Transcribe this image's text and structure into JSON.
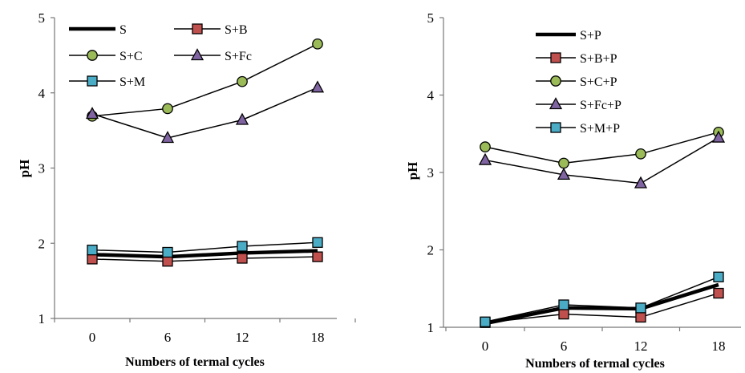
{
  "chart_data": [
    {
      "type": "line",
      "xlabel": "Numbers of termal cycles",
      "ylabel": "pH",
      "categories": [
        "0",
        "6",
        "12",
        "18"
      ],
      "ylim": [
        1,
        5
      ],
      "yticks": [
        "1",
        "2",
        "3",
        "4",
        "5"
      ],
      "grid": false,
      "legend_position": "top",
      "series": [
        {
          "name": "S",
          "values": [
            1.85,
            1.82,
            1.87,
            1.9
          ],
          "marker": "none",
          "color": "#000000"
        },
        {
          "name": "S+B",
          "values": [
            1.79,
            1.76,
            1.8,
            1.82
          ],
          "marker": "square",
          "color": "#c0504d"
        },
        {
          "name": "S+C",
          "values": [
            3.69,
            3.79,
            4.15,
            4.65
          ],
          "marker": "circle",
          "color": "#9bbb59"
        },
        {
          "name": "S+Fc",
          "values": [
            3.72,
            3.4,
            3.64,
            4.07
          ],
          "marker": "triangle",
          "color": "#8064a2"
        },
        {
          "name": "S+M",
          "values": [
            1.91,
            1.88,
            1.96,
            2.01
          ],
          "marker": "square",
          "color": "#4bacc6"
        }
      ]
    },
    {
      "type": "line",
      "xlabel": "Numbers of termal cycles",
      "ylabel": "pH",
      "categories": [
        "0",
        "6",
        "12",
        "18"
      ],
      "ylim": [
        1,
        5
      ],
      "yticks": [
        "1",
        "2",
        "3",
        "4",
        "5"
      ],
      "grid": false,
      "legend_position": "top",
      "series": [
        {
          "name": "S+P",
          "values": [
            1.05,
            1.25,
            1.24,
            1.55
          ],
          "marker": "none",
          "color": "#000000"
        },
        {
          "name": "S+B+P",
          "values": [
            1.06,
            1.17,
            1.13,
            1.44
          ],
          "marker": "square",
          "color": "#c0504d"
        },
        {
          "name": "S+C+P",
          "values": [
            3.33,
            3.12,
            3.24,
            3.52
          ],
          "marker": "circle",
          "color": "#9bbb59"
        },
        {
          "name": "S+Fc+P",
          "values": [
            3.16,
            2.97,
            2.86,
            3.45
          ],
          "marker": "triangle",
          "color": "#8064a2"
        },
        {
          "name": "S+M+P",
          "values": [
            1.07,
            1.29,
            1.25,
            1.65
          ],
          "marker": "square",
          "color": "#4bacc6"
        }
      ]
    }
  ]
}
